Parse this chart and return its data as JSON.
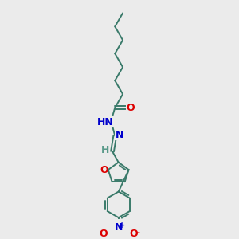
{
  "bg_color": "#ebebeb",
  "bond_color": "#3a7a6a",
  "atom_colors": {
    "O": "#dd0000",
    "N": "#0000cc",
    "H": "#5a9a8a",
    "C": "#3a7a6a"
  },
  "figsize": [
    3.0,
    3.0
  ],
  "dpi": 100
}
